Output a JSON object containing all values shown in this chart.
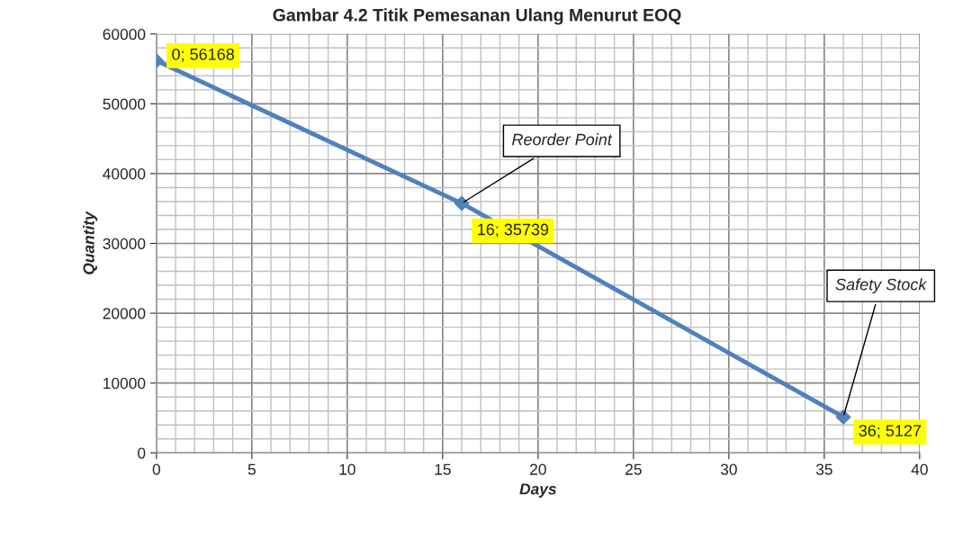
{
  "chart_data": {
    "type": "line",
    "title": "Gambar 4.2 Titik Pemesanan Ulang Menurut EOQ",
    "xlabel": "Days",
    "ylabel": "Quantity",
    "x": [
      0,
      16,
      36
    ],
    "series": [
      {
        "color": "#4f81bd",
        "values": [
          56168,
          35739,
          5127
        ],
        "value_labels": [
          "0; 56168",
          "16; 35739",
          "36; 5127"
        ]
      }
    ],
    "annotations": [
      {
        "text": "Reorder Point",
        "x": 16,
        "y": 35739
      },
      {
        "text": "Safety Stock",
        "x": 36,
        "y": 5127
      }
    ],
    "xlim": [
      0,
      40
    ],
    "xticks": [
      0,
      5,
      10,
      15,
      20,
      25,
      30,
      35,
      40
    ],
    "ylim": [
      0,
      60000
    ],
    "yticks": [
      0,
      10000,
      20000,
      30000,
      40000,
      50000,
      60000
    ],
    "grid": true,
    "marker": "diamond",
    "line_style": "solid",
    "legend": false
  }
}
